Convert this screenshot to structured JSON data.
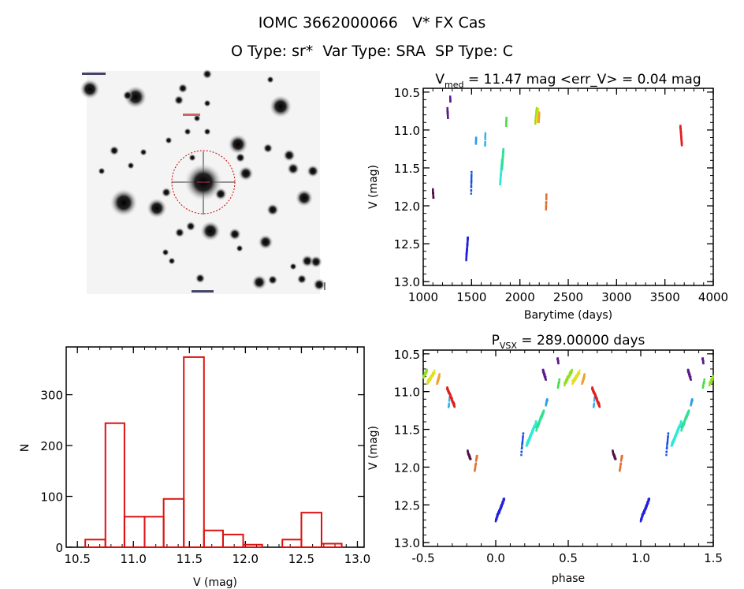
{
  "header": {
    "line1": "IOMC 3662000066   V* FX Cas",
    "line2": "O Type: sr*  Var Type: SRA  SP Type: C"
  },
  "chart_data": [
    {
      "type": "image",
      "description_label": ""
    },
    {
      "type": "scatter",
      "title_main": "V",
      "title_sub": "med",
      "title_rest": " = 11.47 mag <err_V> = 0.04 mag",
      "xlabel": "Barytime (days)",
      "ylabel": "V (mag)",
      "xlim": [
        1000,
        4000
      ],
      "ylim": [
        13.05,
        10.45
      ],
      "y_inverted": true,
      "xticks": [
        1000,
        1500,
        2000,
        2500,
        3000,
        3500,
        4000
      ],
      "yticks": [
        "10.5",
        "11.0",
        "11.5",
        "12.0",
        "12.5",
        "13.0"
      ],
      "segments_columns": [
        "t_start",
        "t_end",
        "V_start",
        "V_end",
        "color"
      ],
      "segments": [
        [
          1100,
          1106,
          11.8,
          11.9,
          "#4e1048"
        ],
        [
          1250,
          1256,
          10.72,
          10.83,
          "#5a1a8a"
        ],
        [
          1279,
          1281,
          10.55,
          10.62,
          "#5a1a8a"
        ],
        [
          1445,
          1462,
          12.7,
          12.42,
          "#2222dd"
        ],
        [
          1496,
          1500,
          11.82,
          11.55,
          "#1850e0"
        ],
        [
          1545,
          1548,
          11.17,
          11.1,
          "#2a9ee8"
        ],
        [
          1640,
          1643,
          11.21,
          11.04,
          "#30b4ea"
        ],
        [
          1795,
          1815,
          11.72,
          11.4,
          "#30e8d8"
        ],
        [
          1815,
          1830,
          11.5,
          11.25,
          "#30e090"
        ],
        [
          1858,
          1861,
          10.94,
          10.84,
          "#40e040"
        ],
        [
          2160,
          2175,
          10.9,
          10.72,
          "#90e020"
        ],
        [
          2176,
          2190,
          10.88,
          10.74,
          "#e0e020"
        ],
        [
          2195,
          2200,
          10.9,
          10.78,
          "#f0a030"
        ],
        [
          2270,
          2275,
          12.04,
          11.84,
          "#e07030"
        ],
        [
          3660,
          3675,
          10.95,
          11.19,
          "#e02020"
        ]
      ]
    },
    {
      "type": "scatter",
      "title_main": "P",
      "title_sub": "VSX",
      "title_rest": " = 289.00000 days",
      "period_days": 289.0,
      "xlabel": "phase",
      "ylabel": "V (mag)",
      "xlim": [
        -0.5,
        1.5
      ],
      "ylim": [
        13.05,
        10.45
      ],
      "y_inverted": true,
      "xticks": [
        "-0.5",
        "0.0",
        "0.5",
        "1.0",
        "1.5"
      ],
      "yticks": [
        "10.5",
        "11.0",
        "11.5",
        "12.0",
        "12.5",
        "13.0"
      ],
      "note": ""
    },
    {
      "type": "bar",
      "subtype": "histogram",
      "xlabel": "V (mag)",
      "ylabel": "N",
      "xlim": [
        10.4,
        13.06
      ],
      "ylim": [
        0,
        394
      ],
      "xticks": [
        "10.5",
        "11.0",
        "11.5",
        "12.0",
        "12.5",
        "13.0"
      ],
      "yticks": [
        "0",
        "100",
        "200",
        "300"
      ],
      "bin_edges": [
        10.57,
        10.75,
        10.92,
        11.1,
        11.27,
        11.45,
        11.63,
        11.8,
        11.98,
        12.15,
        12.33,
        12.5,
        12.68,
        12.86
      ],
      "counts": [
        15,
        244,
        60,
        60,
        95,
        374,
        33,
        25,
        5,
        0,
        15,
        68,
        7
      ],
      "color": "#dd1111"
    }
  ]
}
